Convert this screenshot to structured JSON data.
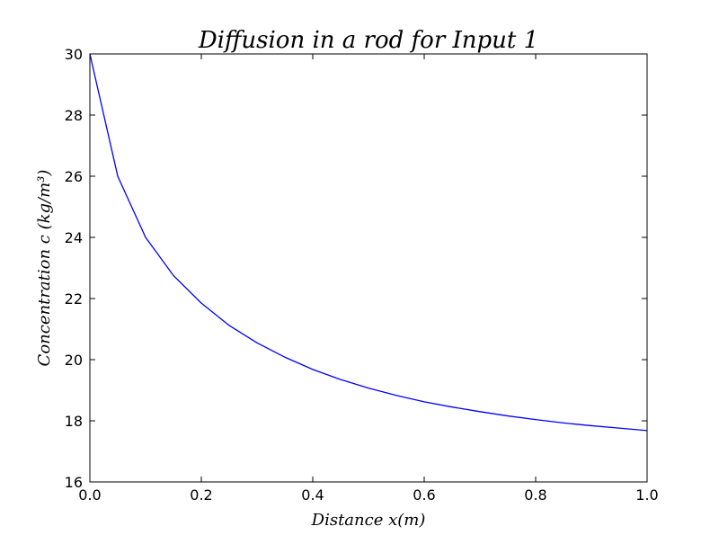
{
  "chart_data": {
    "type": "line",
    "title": "Diffusion in a rod for Input 1",
    "xlabel": "Distance x(m)",
    "ylabel": "Concentration c (kg/m³)",
    "xlim": [
      0.0,
      1.0
    ],
    "ylim": [
      16,
      30
    ],
    "xticks": [
      "0.0",
      "0.2",
      "0.4",
      "0.6",
      "0.8",
      "1.0"
    ],
    "yticks": [
      "16",
      "18",
      "20",
      "22",
      "24",
      "26",
      "28",
      "30"
    ],
    "grid": false,
    "series": [
      {
        "color": "#0000ff",
        "x": [
          0.0,
          0.05,
          0.1,
          0.15,
          0.2,
          0.25,
          0.3,
          0.35,
          0.4,
          0.45,
          0.5,
          0.55,
          0.6,
          0.65,
          0.7,
          0.75,
          0.8,
          0.85,
          0.9,
          0.95,
          1.0
        ],
        "y": [
          30.0,
          26.0,
          24.0,
          22.75,
          21.85,
          21.12,
          20.55,
          20.08,
          19.68,
          19.35,
          19.07,
          18.83,
          18.62,
          18.45,
          18.3,
          18.16,
          18.04,
          17.93,
          17.84,
          17.76,
          17.68
        ]
      }
    ]
  }
}
